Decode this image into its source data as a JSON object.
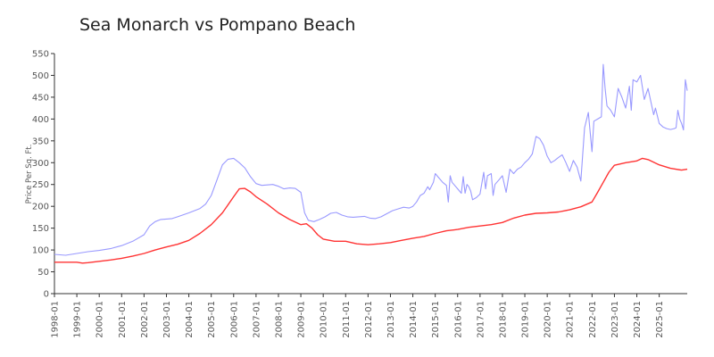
{
  "chart_data": {
    "type": "line",
    "title": "Sea Monarch vs Pompano Beach",
    "xlabel": "",
    "ylabel": "Price Per Sq. Ft.",
    "ylim": [
      0,
      550
    ],
    "y_ticks": [
      0,
      50,
      100,
      150,
      200,
      250,
      300,
      350,
      400,
      450,
      500,
      550
    ],
    "x_tick_labels": [
      "1998-01",
      "1999-01",
      "2000-01",
      "2001-01",
      "2002-01",
      "2003-01",
      "2004-01",
      "2005-01",
      "2006-01",
      "2007-01",
      "2008-01",
      "2009-01",
      "2010-01",
      "2011-01",
      "2012-01",
      "2013-01",
      "2014-01",
      "2015-01",
      "2016-01",
      "2017-01",
      "2018-01",
      "2019-01",
      "2020-01",
      "2021-01",
      "2022-01",
      "2023-01",
      "2024-01",
      "2025-01"
    ],
    "series": [
      {
        "color": "#9999ff",
        "points": [
          [
            "1998-01",
            90
          ],
          [
            "1998-07",
            88
          ],
          [
            "1999-01",
            92
          ],
          [
            "1999-07",
            96
          ],
          [
            "2000-01",
            99
          ],
          [
            "2000-07",
            103
          ],
          [
            "2001-01",
            110
          ],
          [
            "2001-07",
            120
          ],
          [
            "2002-01",
            135
          ],
          [
            "2002-04",
            155
          ],
          [
            "2002-07",
            165
          ],
          [
            "2002-10",
            170
          ],
          [
            "2003-01",
            171
          ],
          [
            "2003-04",
            172
          ],
          [
            "2003-07",
            176
          ],
          [
            "2004-01",
            185
          ],
          [
            "2004-07",
            195
          ],
          [
            "2004-10",
            205
          ],
          [
            "2005-01",
            225
          ],
          [
            "2005-04",
            260
          ],
          [
            "2005-07",
            295
          ],
          [
            "2005-10",
            308
          ],
          [
            "2006-01",
            310
          ],
          [
            "2006-04",
            300
          ],
          [
            "2006-07",
            288
          ],
          [
            "2006-10",
            268
          ],
          [
            "2007-01",
            252
          ],
          [
            "2007-04",
            248
          ],
          [
            "2007-07",
            249
          ],
          [
            "2007-10",
            250
          ],
          [
            "2008-01",
            246
          ],
          [
            "2008-04",
            240
          ],
          [
            "2008-07",
            242
          ],
          [
            "2008-10",
            241
          ],
          [
            "2009-01",
            232
          ],
          [
            "2009-03",
            185
          ],
          [
            "2009-05",
            168
          ],
          [
            "2009-08",
            165
          ],
          [
            "2009-11",
            170
          ],
          [
            "2010-02",
            176
          ],
          [
            "2010-05",
            184
          ],
          [
            "2010-08",
            186
          ],
          [
            "2010-11",
            180
          ],
          [
            "2011-02",
            176
          ],
          [
            "2011-05",
            175
          ],
          [
            "2011-08",
            176
          ],
          [
            "2011-11",
            177
          ],
          [
            "2012-02",
            173
          ],
          [
            "2012-05",
            172
          ],
          [
            "2012-08",
            176
          ],
          [
            "2012-11",
            183
          ],
          [
            "2013-02",
            190
          ],
          [
            "2013-05",
            194
          ],
          [
            "2013-08",
            198
          ],
          [
            "2013-11",
            196
          ],
          [
            "2014-01",
            200
          ],
          [
            "2014-03",
            210
          ],
          [
            "2014-05",
            225
          ],
          [
            "2014-07",
            230
          ],
          [
            "2014-09",
            245
          ],
          [
            "2014-10",
            238
          ],
          [
            "2014-12",
            255
          ],
          [
            "2015-01",
            275
          ],
          [
            "2015-03",
            265
          ],
          [
            "2015-05",
            255
          ],
          [
            "2015-07",
            248
          ],
          [
            "2015-08",
            210
          ],
          [
            "2015-09",
            270
          ],
          [
            "2015-10",
            255
          ],
          [
            "2015-11",
            250
          ],
          [
            "2016-01",
            240
          ],
          [
            "2016-03",
            230
          ],
          [
            "2016-04",
            268
          ],
          [
            "2016-05",
            230
          ],
          [
            "2016-06",
            250
          ],
          [
            "2016-07",
            245
          ],
          [
            "2016-08",
            235
          ],
          [
            "2016-09",
            215
          ],
          [
            "2016-11",
            220
          ],
          [
            "2017-01",
            228
          ],
          [
            "2017-03",
            278
          ],
          [
            "2017-04",
            240
          ],
          [
            "2017-05",
            270
          ],
          [
            "2017-07",
            275
          ],
          [
            "2017-08",
            225
          ],
          [
            "2017-09",
            250
          ],
          [
            "2017-11",
            260
          ],
          [
            "2018-01",
            270
          ],
          [
            "2018-03",
            232
          ],
          [
            "2018-05",
            285
          ],
          [
            "2018-07",
            275
          ],
          [
            "2018-09",
            285
          ],
          [
            "2018-11",
            290
          ],
          [
            "2019-01",
            300
          ],
          [
            "2019-03",
            308
          ],
          [
            "2019-05",
            320
          ],
          [
            "2019-07",
            360
          ],
          [
            "2019-09",
            355
          ],
          [
            "2019-11",
            340
          ],
          [
            "2020-01",
            315
          ],
          [
            "2020-03",
            300
          ],
          [
            "2020-05",
            305
          ],
          [
            "2020-07",
            312
          ],
          [
            "2020-09",
            318
          ],
          [
            "2020-11",
            300
          ],
          [
            "2021-01",
            280
          ],
          [
            "2021-03",
            305
          ],
          [
            "2021-05",
            290
          ],
          [
            "2021-07",
            258
          ],
          [
            "2021-09",
            380
          ],
          [
            "2021-11",
            415
          ],
          [
            "2022-01",
            325
          ],
          [
            "2022-02",
            395
          ],
          [
            "2022-04",
            400
          ],
          [
            "2022-06",
            405
          ],
          [
            "2022-07",
            525
          ],
          [
            "2022-08",
            470
          ],
          [
            "2022-09",
            430
          ],
          [
            "2022-11",
            420
          ],
          [
            "2023-01",
            405
          ],
          [
            "2023-03",
            470
          ],
          [
            "2023-05",
            450
          ],
          [
            "2023-07",
            425
          ],
          [
            "2023-09",
            475
          ],
          [
            "2023-10",
            420
          ],
          [
            "2023-11",
            490
          ],
          [
            "2024-01",
            485
          ],
          [
            "2024-03",
            500
          ],
          [
            "2024-05",
            445
          ],
          [
            "2024-07",
            470
          ],
          [
            "2024-09",
            430
          ],
          [
            "2024-10",
            410
          ],
          [
            "2024-11",
            425
          ],
          [
            "2025-01",
            390
          ],
          [
            "2025-03",
            382
          ],
          [
            "2025-05",
            378
          ],
          [
            "2025-07",
            376
          ],
          [
            "2025-09",
            378
          ],
          [
            "2025-10",
            380
          ],
          [
            "2025-11",
            420
          ],
          [
            "2025-12",
            400
          ],
          [
            "2026-01",
            390
          ],
          [
            "2026-02",
            375
          ],
          [
            "2026-03",
            490
          ],
          [
            "2026-04",
            465
          ]
        ]
      },
      {
        "color": "#ff3333",
        "points": [
          [
            "1998-01",
            72
          ],
          [
            "1998-07",
            72
          ],
          [
            "1999-01",
            72
          ],
          [
            "1999-04",
            70
          ],
          [
            "1999-07",
            71
          ],
          [
            "2000-01",
            74
          ],
          [
            "2000-07",
            77
          ],
          [
            "2001-01",
            81
          ],
          [
            "2001-07",
            86
          ],
          [
            "2002-01",
            92
          ],
          [
            "2002-07",
            100
          ],
          [
            "2003-01",
            107
          ],
          [
            "2003-07",
            113
          ],
          [
            "2004-01",
            122
          ],
          [
            "2004-07",
            138
          ],
          [
            "2005-01",
            158
          ],
          [
            "2005-07",
            185
          ],
          [
            "2006-01",
            222
          ],
          [
            "2006-04",
            240
          ],
          [
            "2006-07",
            241
          ],
          [
            "2006-10",
            233
          ],
          [
            "2007-01",
            222
          ],
          [
            "2007-07",
            205
          ],
          [
            "2008-01",
            185
          ],
          [
            "2008-07",
            170
          ],
          [
            "2009-01",
            158
          ],
          [
            "2009-04",
            160
          ],
          [
            "2009-07",
            150
          ],
          [
            "2009-10",
            135
          ],
          [
            "2010-01",
            125
          ],
          [
            "2010-07",
            120
          ],
          [
            "2011-01",
            120
          ],
          [
            "2011-07",
            114
          ],
          [
            "2012-01",
            112
          ],
          [
            "2012-07",
            114
          ],
          [
            "2013-01",
            117
          ],
          [
            "2013-07",
            122
          ],
          [
            "2014-01",
            127
          ],
          [
            "2014-07",
            131
          ],
          [
            "2015-01",
            138
          ],
          [
            "2015-07",
            144
          ],
          [
            "2016-01",
            147
          ],
          [
            "2016-07",
            152
          ],
          [
            "2017-01",
            155
          ],
          [
            "2017-07",
            158
          ],
          [
            "2018-01",
            163
          ],
          [
            "2018-07",
            173
          ],
          [
            "2019-01",
            180
          ],
          [
            "2019-07",
            184
          ],
          [
            "2020-01",
            185
          ],
          [
            "2020-07",
            187
          ],
          [
            "2021-01",
            192
          ],
          [
            "2021-07",
            199
          ],
          [
            "2022-01",
            210
          ],
          [
            "2022-04",
            232
          ],
          [
            "2022-07",
            255
          ],
          [
            "2022-10",
            278
          ],
          [
            "2023-01",
            294
          ],
          [
            "2023-07",
            300
          ],
          [
            "2024-01",
            304
          ],
          [
            "2024-04",
            310
          ],
          [
            "2024-07",
            307
          ],
          [
            "2025-01",
            295
          ],
          [
            "2025-07",
            287
          ],
          [
            "2026-01",
            283
          ],
          [
            "2026-04",
            285
          ]
        ]
      }
    ]
  }
}
